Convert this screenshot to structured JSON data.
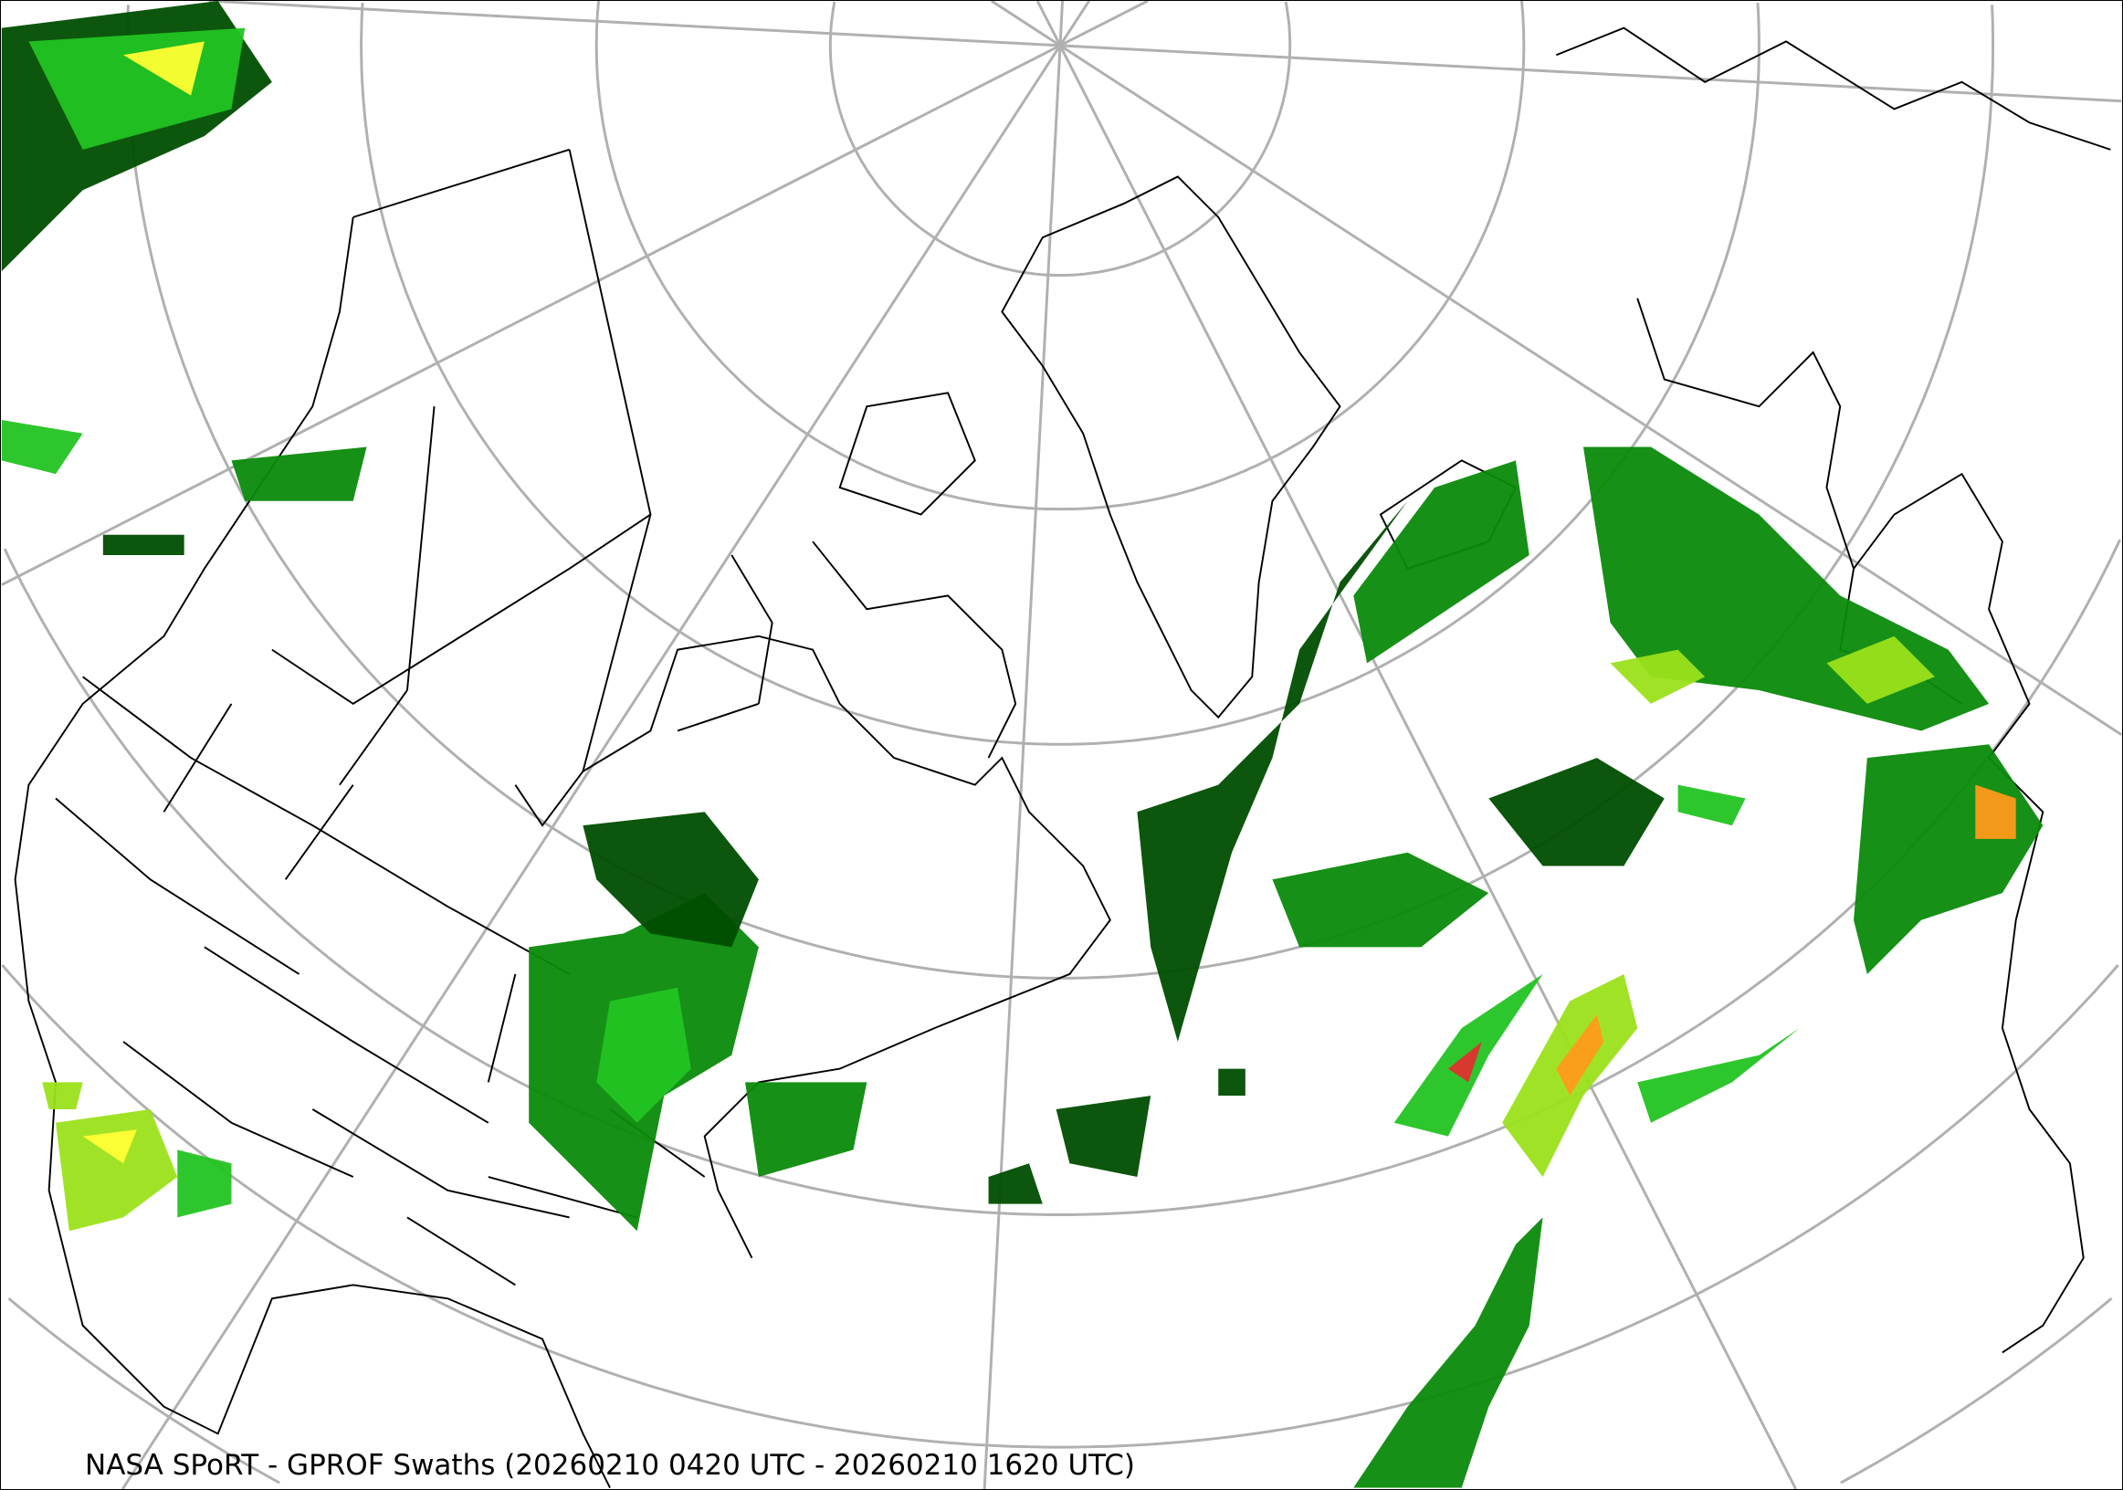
{
  "caption": "NASA SPoRT - GPROF Swaths (20260210 0420 UTC - 20260210 1620 UTC)",
  "map": {
    "projection": "north-polar-stereographic",
    "graticule_color": "#b0b0b0",
    "coastline_color": "#000000",
    "precip_colors": [
      "#004d00",
      "#0a8a0a",
      "#22c422",
      "#9be21a",
      "#ffff33",
      "#ff9a1a",
      "#e03030"
    ]
  }
}
